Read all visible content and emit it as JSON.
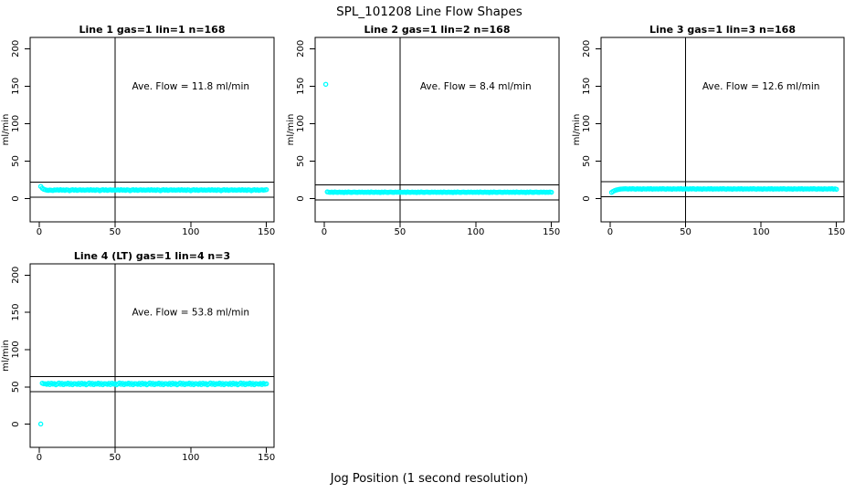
{
  "figure": {
    "title": "SPL_101208  Line Flow Shapes",
    "xlabel": "Jog Position (1 second resolution)",
    "background": "#ffffff",
    "point_color": "#00ffff",
    "axis_color": "#000000"
  },
  "chart_data": [
    {
      "type": "scatter",
      "title": "Line 1 gas=1 lin=1 n=168",
      "gas": 1,
      "lin": 1,
      "n": 168,
      "ave_flow": 11.8,
      "annotation": "Ave. Flow =  11.8  ml/min",
      "ylabel": "ml/min",
      "x_ticks": [
        0,
        50,
        100,
        150
      ],
      "y_ticks": [
        0,
        50,
        100,
        150,
        200
      ],
      "xlim": [
        -6,
        155
      ],
      "ylim": [
        -31,
        215
      ],
      "vline_x": 50,
      "hlines": [
        21.8,
        1.8
      ],
      "annotation_pos": [
        100,
        150
      ],
      "x_start": 1,
      "x_step": 1,
      "y_values": [
        16.2,
        13.9,
        12.4,
        11.8,
        11.3,
        11.0,
        11.5,
        11.2,
        10.8,
        11.6,
        11.4,
        11.7,
        11.2,
        11.9,
        11.3,
        11.6,
        11.0,
        11.8,
        11.5,
        10.6,
        11.4,
        11.9,
        11.2,
        11.7,
        11.0,
        11.5,
        11.8,
        11.3,
        11.6,
        11.2,
        11.4,
        11.7,
        11.2,
        11.9,
        11.3,
        11.6,
        11.0,
        11.8,
        11.5,
        10.6,
        11.4,
        11.9,
        11.2,
        11.7,
        11.0,
        11.5,
        11.8,
        11.3,
        11.6,
        11.2,
        11.4,
        11.7,
        11.2,
        11.9,
        11.3,
        11.6,
        11.0,
        11.8,
        11.5,
        10.6,
        11.4,
        11.9,
        11.2,
        11.7,
        11.0,
        11.5,
        11.8,
        11.3,
        11.6,
        11.2,
        11.4,
        11.7,
        11.2,
        11.9,
        11.3,
        11.6,
        11.0,
        11.8,
        11.5,
        10.6,
        11.4,
        11.9,
        11.2,
        11.7,
        11.0,
        11.5,
        11.8,
        11.3,
        11.6,
        11.2,
        11.4,
        11.7,
        11.2,
        11.9,
        11.3,
        11.6,
        11.0,
        11.8,
        11.5,
        10.6,
        11.4,
        11.9,
        11.2,
        11.7,
        11.0,
        11.5,
        11.8,
        11.3,
        11.6,
        11.2,
        11.4,
        11.7,
        11.2,
        11.9,
        11.3,
        11.6,
        11.0,
        11.8,
        11.5,
        10.6,
        11.4,
        11.9,
        11.2,
        11.7,
        11.0,
        11.5,
        11.8,
        11.3,
        11.6,
        11.2,
        11.4,
        11.7,
        11.2,
        11.9,
        11.3,
        11.6,
        11.0,
        11.8,
        11.5,
        10.6,
        11.4,
        11.9,
        11.2,
        11.7,
        11.0,
        11.5,
        11.8,
        11.3,
        11.6,
        12.0
      ]
    },
    {
      "type": "scatter",
      "title": "Line 2 gas=1 lin=2 n=168",
      "gas": 1,
      "lin": 2,
      "n": 168,
      "ave_flow": 8.4,
      "annotation": "Ave. Flow =  8.4  ml/min",
      "ylabel": "ml/min",
      "x_ticks": [
        0,
        50,
        100,
        150
      ],
      "y_ticks": [
        0,
        50,
        100,
        150,
        200
      ],
      "xlim": [
        -6,
        155
      ],
      "ylim": [
        -31,
        215
      ],
      "vline_x": 50,
      "hlines": [
        18.4,
        -1.6
      ],
      "annotation_pos": [
        100,
        150
      ],
      "x_start": 1,
      "x_step": 1,
      "y_values": [
        152.5,
        9.0,
        8.6,
        8.4,
        8.7,
        8.2,
        8.9,
        8.5,
        8.3,
        8.8,
        8.4,
        8.6,
        8.1,
        8.7,
        8.3,
        8.9,
        8.5,
        8.2,
        8.6,
        8.8,
        8.4,
        8.3,
        8.7,
        8.5,
        8.8,
        8.3,
        8.6,
        8.4,
        8.7,
        8.2,
        8.9,
        8.5,
        8.3,
        8.8,
        8.4,
        8.6,
        8.1,
        8.7,
        8.3,
        8.9,
        8.5,
        8.2,
        8.6,
        8.8,
        8.4,
        8.3,
        8.7,
        8.5,
        8.8,
        8.3,
        8.6,
        8.4,
        8.7,
        8.2,
        8.9,
        8.5,
        8.3,
        8.8,
        8.4,
        8.6,
        8.1,
        8.7,
        8.3,
        8.9,
        8.5,
        8.2,
        8.6,
        8.8,
        8.4,
        8.3,
        8.7,
        8.5,
        8.8,
        8.3,
        8.6,
        8.4,
        8.7,
        8.2,
        8.9,
        8.5,
        8.3,
        8.8,
        8.4,
        8.6,
        8.1,
        8.7,
        8.3,
        8.9,
        8.5,
        8.2,
        8.6,
        8.8,
        8.4,
        8.3,
        8.7,
        8.5,
        8.8,
        8.3,
        8.6,
        8.4,
        8.7,
        8.2,
        8.9,
        8.5,
        8.3,
        8.8,
        8.4,
        8.6,
        8.1,
        8.7,
        8.3,
        8.9,
        8.5,
        8.2,
        8.6,
        8.8,
        8.4,
        8.3,
        8.7,
        8.5,
        8.8,
        8.3,
        8.6,
        8.4,
        8.7,
        8.2,
        8.9,
        8.5,
        8.3,
        8.8,
        8.4,
        8.6,
        8.1,
        8.7,
        8.3,
        8.9,
        8.5,
        8.2,
        8.6,
        8.8,
        8.4,
        8.3,
        8.7,
        8.5,
        8.8,
        8.3,
        8.6,
        8.4,
        8.7,
        8.5
      ]
    },
    {
      "type": "scatter",
      "title": "Line 3 gas=1 lin=3 n=168",
      "gas": 1,
      "lin": 3,
      "n": 168,
      "ave_flow": 12.6,
      "annotation": "Ave. Flow =  12.6  ml/min",
      "ylabel": "ml/min",
      "x_ticks": [
        0,
        50,
        100,
        150
      ],
      "y_ticks": [
        0,
        50,
        100,
        150,
        200
      ],
      "xlim": [
        -6,
        155
      ],
      "ylim": [
        -31,
        215
      ],
      "vline_x": 50,
      "hlines": [
        22.6,
        2.6
      ],
      "annotation_pos": [
        100,
        150
      ],
      "x_start": 1,
      "x_step": 1,
      "y_values": [
        8.3,
        9.7,
        10.7,
        11.4,
        12.0,
        12.4,
        12.7,
        12.9,
        13.0,
        13.1,
        13.0,
        12.7,
        13.2,
        12.8,
        13.3,
        12.9,
        12.6,
        13.1,
        12.8,
        13.0,
        12.5,
        13.2,
        12.9,
        12.7,
        13.1,
        12.8,
        13.3,
        12.6,
        13.0,
        12.8,
        13.0,
        12.7,
        13.2,
        12.8,
        13.3,
        12.9,
        12.6,
        13.1,
        12.8,
        13.0,
        12.5,
        13.2,
        12.9,
        12.7,
        13.1,
        12.8,
        13.3,
        12.6,
        13.0,
        12.8,
        13.0,
        12.7,
        13.2,
        12.8,
        13.3,
        12.9,
        12.6,
        13.1,
        12.8,
        13.0,
        12.5,
        13.2,
        12.9,
        12.7,
        13.1,
        12.8,
        13.3,
        12.6,
        13.0,
        12.8,
        13.0,
        12.7,
        13.2,
        12.8,
        13.3,
        12.9,
        12.6,
        13.1,
        12.8,
        13.0,
        12.5,
        13.2,
        12.9,
        12.7,
        13.1,
        12.8,
        13.3,
        12.6,
        13.0,
        12.8,
        13.0,
        12.7,
        13.2,
        12.8,
        13.3,
        12.9,
        12.6,
        13.1,
        12.8,
        13.0,
        12.5,
        13.2,
        12.9,
        12.7,
        13.1,
        12.8,
        13.3,
        12.6,
        13.0,
        12.8,
        13.0,
        12.7,
        13.2,
        12.8,
        13.3,
        12.9,
        12.6,
        13.1,
        12.8,
        13.0,
        12.5,
        13.2,
        12.9,
        12.7,
        13.1,
        12.8,
        13.3,
        12.6,
        13.0,
        12.8,
        13.0,
        12.7,
        13.2,
        12.8,
        13.3,
        12.9,
        12.6,
        13.1,
        12.8,
        13.0,
        12.5,
        13.2,
        12.9,
        12.7,
        13.1,
        12.8,
        13.3,
        12.6,
        13.0,
        12.4
      ]
    },
    {
      "type": "scatter",
      "title": "Line 4 (LT) gas=1 lin=4 n=3",
      "gas": 1,
      "lin": 4,
      "n": 3,
      "ave_flow": 53.8,
      "annotation": "Ave. Flow =  53.8  ml/min",
      "ylabel": "ml/min",
      "x_ticks": [
        0,
        50,
        100,
        150
      ],
      "y_ticks": [
        0,
        50,
        100,
        150,
        200
      ],
      "xlim": [
        -6,
        155
      ],
      "ylim": [
        -31,
        215
      ],
      "vline_x": 50,
      "hlines": [
        63.8,
        43.8
      ],
      "annotation_pos": [
        100,
        150
      ],
      "x_start": 1,
      "x_step": 1,
      "y_values": [
        0.3,
        55.0,
        54.2,
        54.2,
        53.5,
        54.8,
        53.2,
        55.0,
        53.8,
        54.5,
        52.9,
        54.0,
        55.3,
        53.6,
        54.9,
        53.1,
        54.4,
        53.9,
        55.1,
        53.4,
        54.7,
        53.0,
        54.3,
        54.2,
        53.5,
        54.8,
        53.2,
        55.0,
        53.8,
        54.5,
        52.9,
        54.0,
        55.3,
        53.6,
        54.9,
        53.1,
        54.4,
        53.9,
        55.1,
        53.4,
        54.7,
        53.0,
        54.3,
        54.2,
        53.5,
        54.8,
        53.2,
        55.0,
        53.8,
        54.5,
        52.9,
        54.0,
        55.3,
        53.6,
        54.9,
        53.1,
        54.4,
        53.9,
        55.1,
        53.4,
        54.7,
        53.0,
        54.3,
        54.2,
        53.5,
        54.8,
        53.2,
        55.0,
        53.8,
        54.5,
        52.9,
        54.0,
        55.3,
        53.6,
        54.9,
        53.1,
        54.4,
        53.9,
        55.1,
        53.4,
        54.7,
        53.0,
        54.3,
        54.2,
        53.5,
        54.8,
        53.2,
        55.0,
        53.8,
        54.5,
        52.9,
        54.0,
        55.3,
        53.6,
        54.9,
        53.1,
        54.4,
        53.9,
        55.1,
        53.4,
        54.7,
        53.0,
        54.3,
        54.2,
        53.5,
        54.8,
        53.2,
        55.0,
        53.8,
        54.5,
        52.9,
        54.0,
        55.3,
        53.6,
        54.9,
        53.1,
        54.4,
        53.9,
        55.1,
        53.4,
        54.7,
        53.0,
        54.3,
        54.2,
        53.5,
        54.8,
        53.2,
        55.0,
        53.8,
        54.5,
        52.9,
        54.0,
        55.3,
        53.6,
        54.9,
        53.1,
        54.4,
        53.9,
        55.1,
        53.4,
        54.7,
        53.0,
        54.3,
        54.1,
        53.7,
        54.6,
        53.3,
        54.9,
        53.8,
        54.2
      ]
    }
  ]
}
